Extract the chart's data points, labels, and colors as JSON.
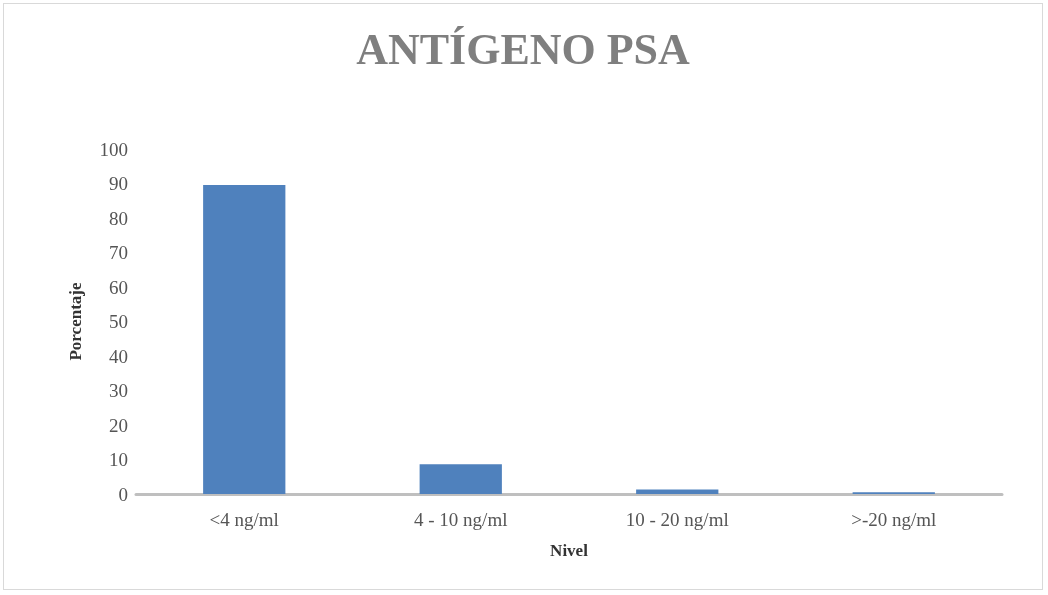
{
  "chart_data": {
    "type": "bar",
    "title": "ANTÍGENO PSA",
    "xlabel": "Nivel",
    "ylabel": "Porcentaje",
    "categories": [
      "<4 ng/ml",
      "4 - 10 ng/ml",
      "10 - 20 ng/ml",
      ">-20 ng/ml"
    ],
    "values": [
      89.6,
      8.6,
      1.3,
      0.5
    ],
    "color": "#4f81bd",
    "ylim": [
      0,
      100
    ],
    "yticks": [
      0,
      10,
      20,
      30,
      40,
      50,
      60,
      70,
      80,
      90,
      100
    ],
    "grid": false
  }
}
